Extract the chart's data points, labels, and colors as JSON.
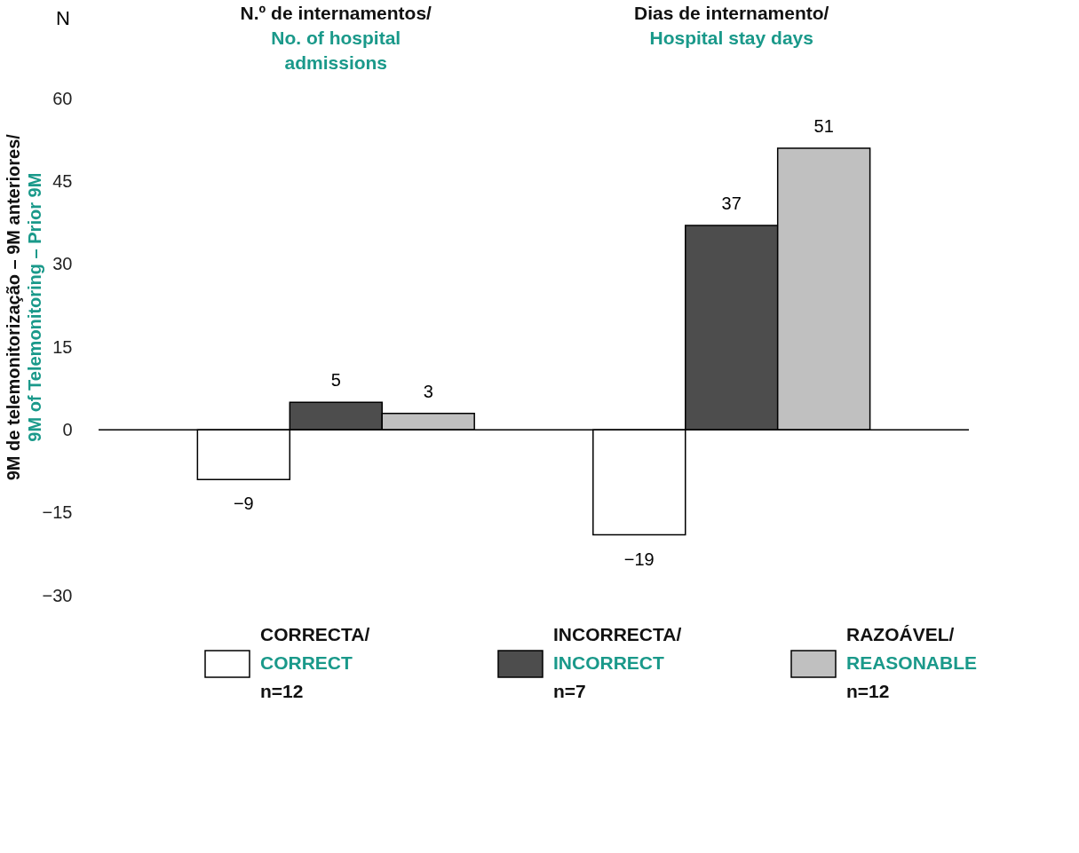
{
  "chart_data": {
    "type": "bar",
    "categories": [
      "N.º de internamentos/\nNo. of hospital\nadmissions",
      "Dias de internamento/\nHospital stay days"
    ],
    "ylabel": "9M de telemonitorização – 9M anteriores/\n9M  of Telemonitoring – Prior 9M",
    "annotations": [
      "N"
    ],
    "series": [
      {
        "name": "CORRECTA/\nCORRECT\nn=12",
        "color": "#ffffff",
        "values": [
          -9,
          -19
        ]
      },
      {
        "name": "INCORRECTA/\nINCORRECT\nn=7",
        "color": "#4d4d4d",
        "values": [
          5,
          37
        ]
      },
      {
        "name": "RAZOÁVEL/\nREASONABLE\nn=12",
        "color": "#c0c0c0",
        "values": [
          3,
          51
        ]
      }
    ],
    "ylim": [
      -30,
      60
    ],
    "yticks": [
      -30,
      -15,
      0,
      15,
      30,
      45,
      60
    ],
    "ref_lines": [
      {
        "axis": "y",
        "value": 0,
        "color": "#000000"
      }
    ],
    "data_labels": true,
    "grid": false,
    "legend": "bottom"
  }
}
